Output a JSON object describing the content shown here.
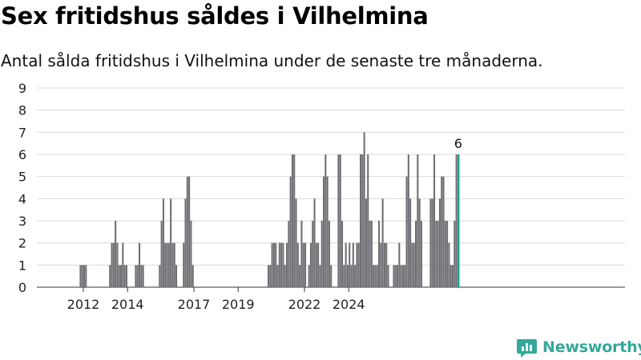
{
  "header": {
    "title": "Sex fritidshus såldes i Vilhelmina",
    "subtitle": "Antal sålda fritidshus i Vilhelmina under de senaste tre månaderna."
  },
  "brand": {
    "name": "Newsworthy",
    "color": "#34a89c",
    "icon": "newsworthy-logo-icon"
  },
  "colors": {
    "bar": "#6e6d72",
    "highlight": "#1a9e8f",
    "grid": "#d9d9d9",
    "axis": "#333333"
  },
  "chart_data": {
    "type": "bar",
    "title": "Sex fritidshus såldes i Vilhelmina",
    "subtitle": "Antal sålda fritidshus i Vilhelmina under de senaste tre månaderna.",
    "xlabel": "",
    "ylabel": "",
    "ylim": [
      0,
      9
    ],
    "yticks": [
      "0",
      "1",
      "2",
      "3",
      "4",
      "5",
      "6",
      "7",
      "8",
      "9"
    ],
    "xticks": [
      "2012",
      "2014",
      "2017",
      "2019",
      "2022",
      "2024"
    ],
    "x_start": "2011-03",
    "frequency": "monthly",
    "grid": true,
    "legend": "none",
    "highlight_last": true,
    "highlight_label": "6",
    "values": [
      0,
      0,
      0,
      0,
      0,
      0,
      0,
      0,
      1,
      1,
      1,
      1,
      0,
      0,
      0,
      0,
      0,
      0,
      0,
      0,
      0,
      0,
      0,
      0,
      1,
      2,
      2,
      3,
      2,
      1,
      1,
      2,
      1,
      1,
      0,
      0,
      0,
      0,
      1,
      1,
      2,
      1,
      1,
      0,
      0,
      0,
      0,
      0,
      0,
      0,
      0,
      1,
      3,
      4,
      2,
      2,
      2,
      4,
      2,
      2,
      1,
      0,
      0,
      0,
      2,
      4,
      5,
      5,
      3,
      1,
      0,
      0,
      0,
      0,
      0,
      0,
      0,
      0,
      0,
      0,
      0,
      0,
      0,
      0,
      0,
      0,
      0,
      0,
      0,
      0,
      0,
      0,
      0,
      0,
      0,
      0,
      0,
      0,
      0,
      0,
      0,
      0,
      0,
      0,
      0,
      0,
      0,
      0,
      0,
      0,
      1,
      1,
      2,
      2,
      2,
      1,
      2,
      2,
      2,
      1,
      2,
      3,
      5,
      6,
      6,
      4,
      2,
      1,
      3,
      2,
      2,
      0,
      1,
      2,
      3,
      4,
      2,
      2,
      1,
      3,
      5,
      6,
      5,
      3,
      1,
      0,
      0,
      0,
      6,
      6,
      3,
      1,
      2,
      1,
      2,
      1,
      2,
      1,
      2,
      2,
      6,
      6,
      7,
      4,
      6,
      3,
      3,
      1,
      1,
      1,
      3,
      2,
      4,
      2,
      2,
      1,
      0,
      0,
      1,
      1,
      1,
      2,
      1,
      1,
      1,
      5,
      6,
      4,
      2,
      2,
      3,
      6,
      4,
      3,
      0,
      0,
      0,
      0,
      4,
      4,
      6,
      3,
      3,
      4,
      5,
      5,
      3,
      3,
      2,
      1,
      1,
      3,
      6,
      6
    ]
  }
}
